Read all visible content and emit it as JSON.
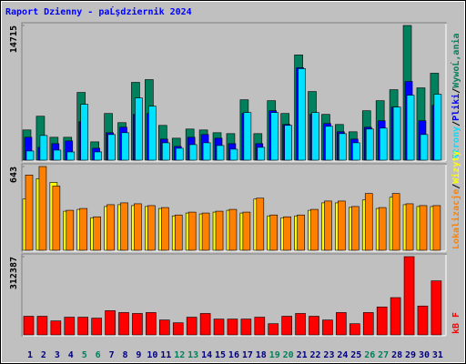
{
  "title": "Raport Dzienny -  paĹşdziernik 2024",
  "chart_data": [
    {
      "type": "bar",
      "ylim": [
        0,
        14715
      ],
      "yticks": [
        14715
      ],
      "legend_separator": "/",
      "series": [
        {
          "name": "WywoĹ‚ania",
          "color": "#00805C",
          "values": [
            3300,
            4800,
            2500,
            2500,
            7400,
            2000,
            5100,
            4100,
            8500,
            8800,
            3800,
            2400,
            3400,
            3300,
            3000,
            2900,
            6600,
            2900,
            6500,
            5100,
            11500,
            7500,
            5000,
            3900,
            3100,
            5400,
            6500,
            7700,
            14715,
            7900,
            9500
          ]
        },
        {
          "name": "Pliki",
          "color": "#0000FF",
          "values": [
            2500,
            1400,
            1800,
            2100,
            4200,
            1300,
            3000,
            3600,
            5000,
            5100,
            2300,
            1500,
            2500,
            2800,
            2400,
            1800,
            5100,
            1800,
            5400,
            3900,
            10100,
            5000,
            4000,
            3100,
            2300,
            3600,
            4300,
            5800,
            8600,
            4300,
            6000
          ]
        },
        {
          "name": "Strony",
          "color": "#00E0FF",
          "values": [
            1000,
            2700,
            1100,
            900,
            6100,
            900,
            2800,
            3000,
            6800,
            5900,
            1900,
            1300,
            1700,
            1900,
            1600,
            1200,
            5200,
            1400,
            5200,
            3800,
            10000,
            5200,
            3700,
            2900,
            1900,
            3400,
            3500,
            5800,
            7100,
            2800,
            7200
          ]
        }
      ]
    },
    {
      "type": "bar",
      "ylim": [
        0,
        643
      ],
      "yticks": [
        643
      ],
      "legend_separator": "/",
      "series": [
        {
          "name": "Wizyty",
          "color": "#FFFF00",
          "values": [
            393,
            550,
            521,
            300,
            314,
            250,
            336,
            350,
            343,
            336,
            321,
            264,
            286,
            279,
            293,
            307,
            286,
            393,
            264,
            250,
            264,
            307,
            364,
            364,
            329,
            386,
            321,
            407,
            350,
            336,
            336
          ]
        },
        {
          "name": "Lokalizacje",
          "color": "#FF8000",
          "values": [
            578,
            643,
            493,
            307,
            321,
            257,
            350,
            364,
            357,
            343,
            328,
            271,
            293,
            286,
            300,
            314,
            293,
            400,
            271,
            257,
            271,
            314,
            378,
            378,
            336,
            436,
            328,
            436,
            357,
            343,
            343
          ]
        }
      ]
    },
    {
      "type": "bar",
      "ylim": [
        0,
        312387
      ],
      "yticks": [
        312387
      ],
      "categories": [
        "1",
        "2",
        "3",
        "4",
        "5",
        "6",
        "7",
        "8",
        "9",
        "10",
        "11",
        "12",
        "13",
        "14",
        "15",
        "16",
        "17",
        "18",
        "19",
        "20",
        "21",
        "22",
        "23",
        "24",
        "25",
        "26",
        "27",
        "28",
        "29",
        "30",
        "31"
      ],
      "category_colors": [
        "#000080",
        "#000080",
        "#000080",
        "#000080",
        "#00805C",
        "#00805C",
        "#000080",
        "#000080",
        "#000080",
        "#000080",
        "#000080",
        "#00805C",
        "#00805C",
        "#000080",
        "#000080",
        "#000080",
        "#000080",
        "#000080",
        "#00805C",
        "#00805C",
        "#000080",
        "#000080",
        "#000080",
        "#000080",
        "#000080",
        "#00805C",
        "#00805C",
        "#000080",
        "#000080",
        "#000080",
        "#000080"
      ],
      "series": [
        {
          "name": "kB F",
          "color": "#FF0000",
          "values": [
            74400,
            74400,
            55800,
            70700,
            70700,
            66900,
            96700,
            89200,
            85500,
            89200,
            59500,
            48300,
            70700,
            85500,
            63200,
            63200,
            63200,
            70700,
            44600,
            74400,
            85500,
            74400,
            59500,
            89200,
            44600,
            89200,
            111600,
            148800,
            312387,
            115300,
            215700
          ]
        }
      ]
    }
  ]
}
